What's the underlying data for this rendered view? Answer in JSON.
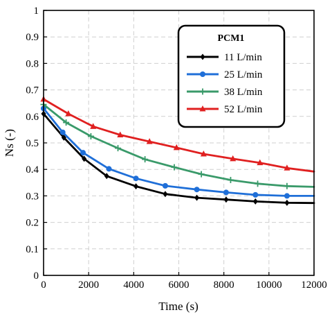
{
  "chart_data": {
    "type": "line",
    "xlabel": "Time (s)",
    "ylabel": "Ns (-)",
    "xlim": [
      0,
      12000
    ],
    "ylim": [
      0,
      1
    ],
    "xticks": [
      0,
      2000,
      4000,
      6000,
      8000,
      10000,
      12000
    ],
    "yticks": [
      0,
      0.1,
      0.2,
      0.3,
      0.4,
      0.5,
      0.6,
      0.7,
      0.8,
      0.9,
      1
    ],
    "grid": true,
    "legend": {
      "title": "PCM1",
      "position": "top-right"
    },
    "series": [
      {
        "name": "11 L/min",
        "color": "#000000",
        "marker": "diamond",
        "x": [
          0,
          900,
          1800,
          2800,
          4100,
          5400,
          6800,
          8100,
          9400,
          10800,
          12000
        ],
        "y": [
          0.61,
          0.52,
          0.44,
          0.375,
          0.336,
          0.307,
          0.293,
          0.286,
          0.279,
          0.274,
          0.273
        ]
      },
      {
        "name": "25 L/min",
        "color": "#1f6fd8",
        "marker": "circle",
        "x": [
          0,
          850,
          1750,
          2900,
          4100,
          5400,
          6800,
          8100,
          9400,
          10800,
          12000
        ],
        "y": [
          0.63,
          0.54,
          0.463,
          0.402,
          0.366,
          0.338,
          0.324,
          0.313,
          0.304,
          0.3,
          0.3
        ]
      },
      {
        "name": "38 L/min",
        "color": "#3a9a6a",
        "marker": "plus",
        "x": [
          0,
          1000,
          2100,
          3300,
          4500,
          5800,
          7000,
          8300,
          9500,
          10800,
          12000
        ],
        "y": [
          0.645,
          0.577,
          0.525,
          0.48,
          0.438,
          0.408,
          0.382,
          0.36,
          0.346,
          0.337,
          0.334
        ]
      },
      {
        "name": "52 L/min",
        "color": "#e02020",
        "marker": "triangle",
        "x": [
          0,
          1100,
          2200,
          3400,
          4700,
          5900,
          7100,
          8400,
          9600,
          10800,
          12000
        ],
        "y": [
          0.665,
          0.61,
          0.562,
          0.53,
          0.505,
          0.482,
          0.458,
          0.44,
          0.425,
          0.405,
          0.392
        ]
      }
    ]
  }
}
